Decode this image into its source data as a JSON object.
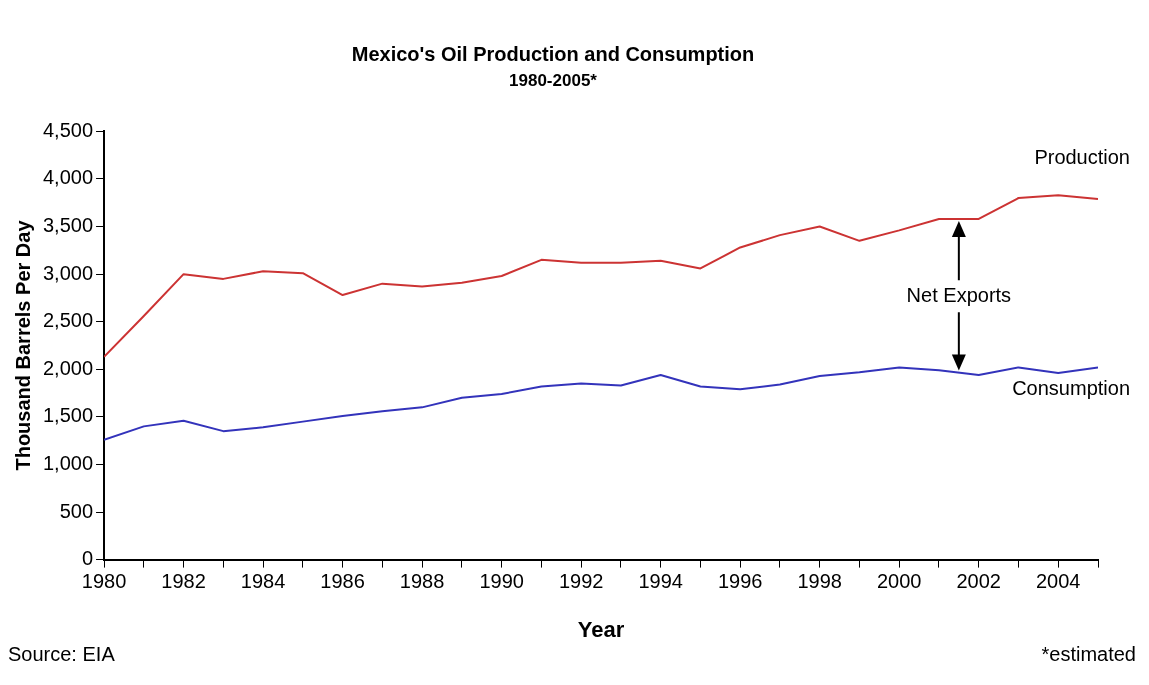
{
  "chart_data": {
    "type": "line",
    "title": "Mexico's Oil Production and Consumption",
    "subtitle": "1980-2005*",
    "xlabel": "Year",
    "ylabel": "Thousand Barrels Per Day",
    "x": [
      1980,
      1981,
      1982,
      1983,
      1984,
      1985,
      1986,
      1987,
      1988,
      1989,
      1990,
      1991,
      1992,
      1993,
      1994,
      1995,
      1996,
      1997,
      1998,
      1999,
      2000,
      2001,
      2002,
      2003,
      2004,
      2005
    ],
    "series": [
      {
        "name": "Production",
        "color": "#cc3333",
        "values": [
          2130,
          2560,
          3000,
          2950,
          3030,
          3010,
          2780,
          2900,
          2870,
          2910,
          2980,
          3150,
          3120,
          3120,
          3140,
          3060,
          3280,
          3410,
          3500,
          3350,
          3460,
          3580,
          3580,
          3800,
          3830,
          3790
        ]
      },
      {
        "name": "Consumption",
        "color": "#3333bb",
        "values": [
          1260,
          1400,
          1460,
          1350,
          1390,
          1450,
          1510,
          1560,
          1600,
          1700,
          1740,
          1820,
          1850,
          1830,
          1940,
          1820,
          1790,
          1840,
          1930,
          1970,
          2020,
          1990,
          1940,
          2020,
          1960,
          2020
        ]
      }
    ],
    "xlim": [
      1980,
      2005
    ],
    "xticks": [
      1980,
      {
        "value": 1981,
        "label": null
      },
      1982,
      {
        "value": 1983,
        "label": null
      },
      1984,
      {
        "value": 1985,
        "label": null
      },
      1986,
      {
        "value": 1987,
        "label": null
      },
      1988,
      {
        "value": 1989,
        "label": null
      },
      1990,
      {
        "value": 1991,
        "label": null
      },
      1992,
      {
        "value": 1993,
        "label": null
      },
      1994,
      {
        "value": 1995,
        "label": null
      },
      1996,
      {
        "value": 1997,
        "label": null
      },
      1998,
      {
        "value": 1999,
        "label": null
      },
      2000,
      {
        "value": 2001,
        "label": null
      },
      2002,
      {
        "value": 2003,
        "label": null
      },
      2004,
      {
        "value": 2005,
        "label": null
      }
    ],
    "ylim": [
      0,
      4500
    ],
    "yticks": [
      0,
      500,
      {
        "value": 1000,
        "label": "1,000"
      },
      {
        "value": 1500,
        "label": "1,500"
      },
      {
        "value": 2000,
        "label": "2,000"
      },
      {
        "value": 2500,
        "label": "2,500"
      },
      {
        "value": 3000,
        "label": "3,000"
      },
      {
        "value": 3500,
        "label": "3,500"
      },
      {
        "value": 4000,
        "label": "4,000"
      },
      {
        "value": 4500,
        "label": "4,500"
      }
    ],
    "grid": false,
    "legend": false,
    "marker": "none",
    "line_style": "solid",
    "annotations": [
      "Net Exports",
      "Source: EIA",
      "*estimated"
    ]
  }
}
